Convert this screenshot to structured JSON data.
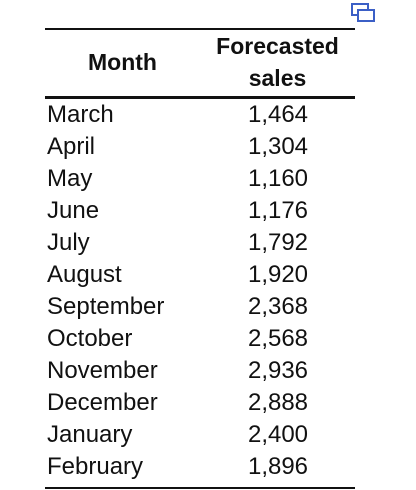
{
  "icons": {
    "copy": "copy-icon"
  },
  "colors": {
    "icon_stroke": "#3b5fc6",
    "text": "#111111",
    "rule": "#111111"
  },
  "table": {
    "header": {
      "month": "Month",
      "sales": "Forecasted\nsales"
    },
    "rows": [
      {
        "month": "March",
        "sales": "1,464"
      },
      {
        "month": "April",
        "sales": "1,304"
      },
      {
        "month": "May",
        "sales": "1,160"
      },
      {
        "month": "June",
        "sales": "1,176"
      },
      {
        "month": "July",
        "sales": "1,792"
      },
      {
        "month": "August",
        "sales": "1,920"
      },
      {
        "month": "September",
        "sales": "2,368"
      },
      {
        "month": "October",
        "sales": "2,568"
      },
      {
        "month": "November",
        "sales": "2,936"
      },
      {
        "month": "December",
        "sales": "2,888"
      },
      {
        "month": "January",
        "sales": "2,400"
      },
      {
        "month": "February",
        "sales": "1,896"
      }
    ]
  }
}
